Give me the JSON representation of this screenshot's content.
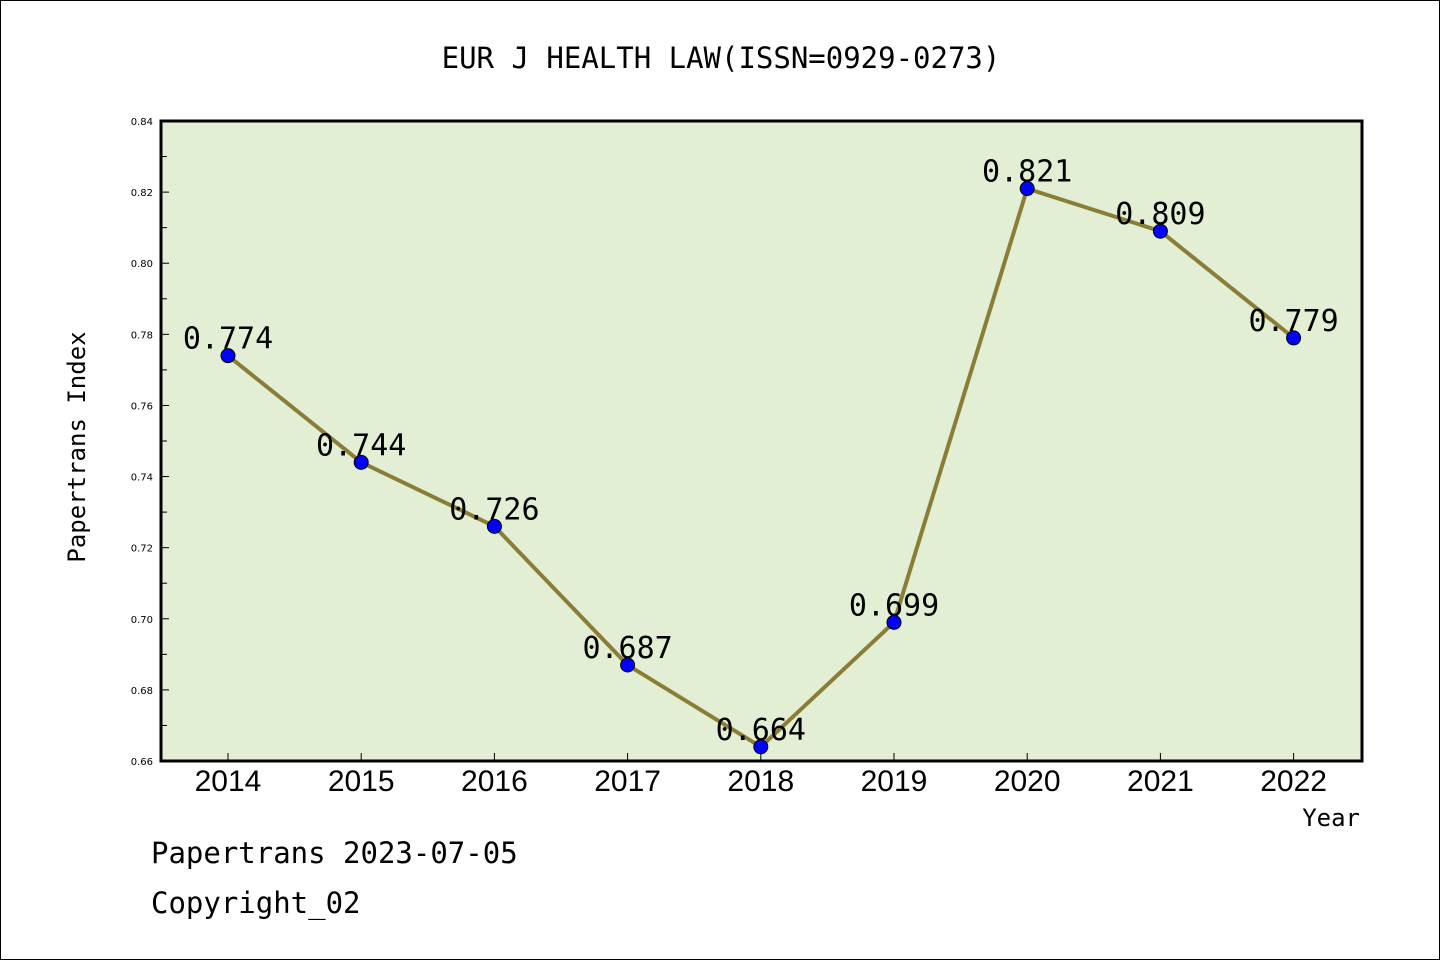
{
  "chart_data": {
    "type": "line",
    "title": "EUR J HEALTH LAW(ISSN=0929-0273)",
    "xlabel": "Year",
    "ylabel": "Papertrans Index",
    "categories": [
      "2014",
      "2015",
      "2016",
      "2017",
      "2018",
      "2019",
      "2020",
      "2021",
      "2022"
    ],
    "values": [
      0.774,
      0.744,
      0.726,
      0.687,
      0.664,
      0.699,
      0.821,
      0.809,
      0.779
    ],
    "data_labels": [
      "0.774",
      "0.744",
      "0.726",
      "0.687",
      "0.664",
      "0.699",
      "0.821",
      "0.809",
      "0.779"
    ],
    "ylim": [
      0.66,
      0.84
    ],
    "yticks": [
      "0.66",
      "0.68",
      "0.70",
      "0.72",
      "0.74",
      "0.76",
      "0.78",
      "0.80",
      "0.82",
      "0.84"
    ],
    "grid": false,
    "colors": {
      "plot_background": "#e2efd5",
      "line": "#8b7d35",
      "marker": "#0000ff"
    }
  },
  "footer": {
    "line1": "Papertrans 2023-07-05",
    "line2": "Copyright_02"
  }
}
